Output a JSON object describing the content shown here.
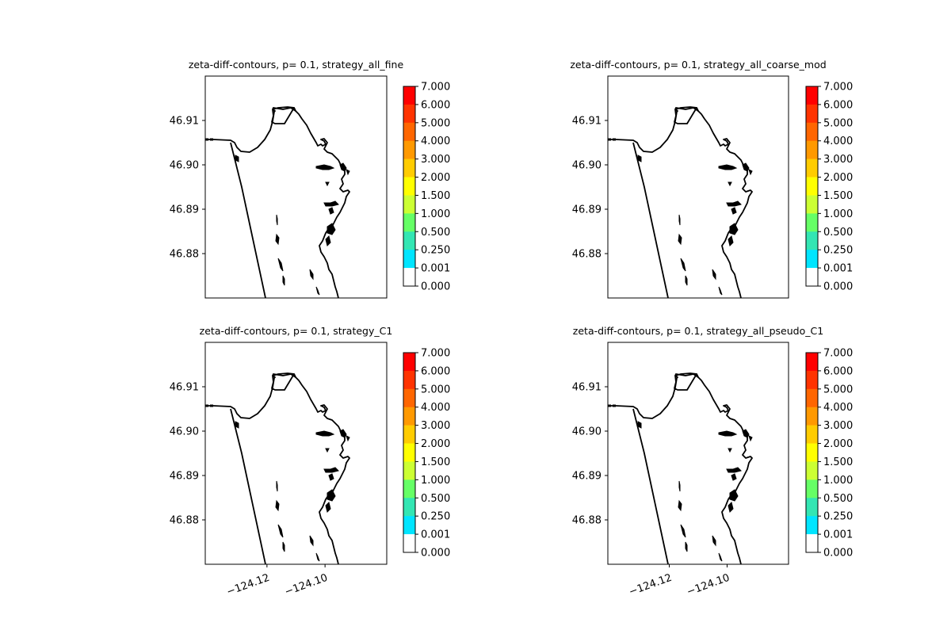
{
  "figure": {
    "background": "#ffffff"
  },
  "chart_data": [
    {
      "type": "contour-map",
      "title": "zeta-diff-contours, p= 0.1, strategy_all_fine",
      "yticks": [
        "46.91",
        "46.90",
        "46.89",
        "46.88"
      ],
      "xticks": [],
      "colorbar_levels": [
        "7.000",
        "6.000",
        "5.000",
        "4.000",
        "3.000",
        "2.000",
        "1.500",
        "1.000",
        "0.500",
        "0.250",
        "0.001",
        "0.000"
      ]
    },
    {
      "type": "contour-map",
      "title": "zeta-diff-contours, p= 0.1, strategy_all_coarse_mod",
      "yticks": [
        "46.91",
        "46.90",
        "46.89",
        "46.88"
      ],
      "xticks": [],
      "colorbar_levels": [
        "7.000",
        "6.000",
        "5.000",
        "4.000",
        "3.000",
        "2.000",
        "1.500",
        "1.000",
        "0.500",
        "0.250",
        "0.001",
        "0.000"
      ]
    },
    {
      "type": "contour-map",
      "title": "zeta-diff-contours, p= 0.1, strategy_C1",
      "yticks": [
        "46.91",
        "46.90",
        "46.89",
        "46.88"
      ],
      "xticks": [
        "−124.12",
        "−124.10"
      ],
      "colorbar_levels": [
        "7.000",
        "6.000",
        "5.000",
        "4.000",
        "3.000",
        "2.000",
        "1.500",
        "1.000",
        "0.500",
        "0.250",
        "0.001",
        "0.000"
      ]
    },
    {
      "type": "contour-map",
      "title": "zeta-diff-contours, p= 0.1, strategy_all_pseudo_C1",
      "yticks": [
        "46.91",
        "46.90",
        "46.89",
        "46.88"
      ],
      "xticks": [
        "−124.12",
        "−124.10"
      ],
      "colorbar_levels": [
        "7.000",
        "6.000",
        "5.000",
        "4.000",
        "3.000",
        "2.000",
        "1.500",
        "1.000",
        "0.500",
        "0.250",
        "0.001",
        "0.000"
      ]
    }
  ],
  "colorbar_colors": [
    "#ff0000",
    "#ff3300",
    "#ff6600",
    "#ff9900",
    "#ffcc00",
    "#ffff00",
    "#ccff33",
    "#66ff66",
    "#33e6b3",
    "#00e5ff",
    "#ffffff"
  ]
}
